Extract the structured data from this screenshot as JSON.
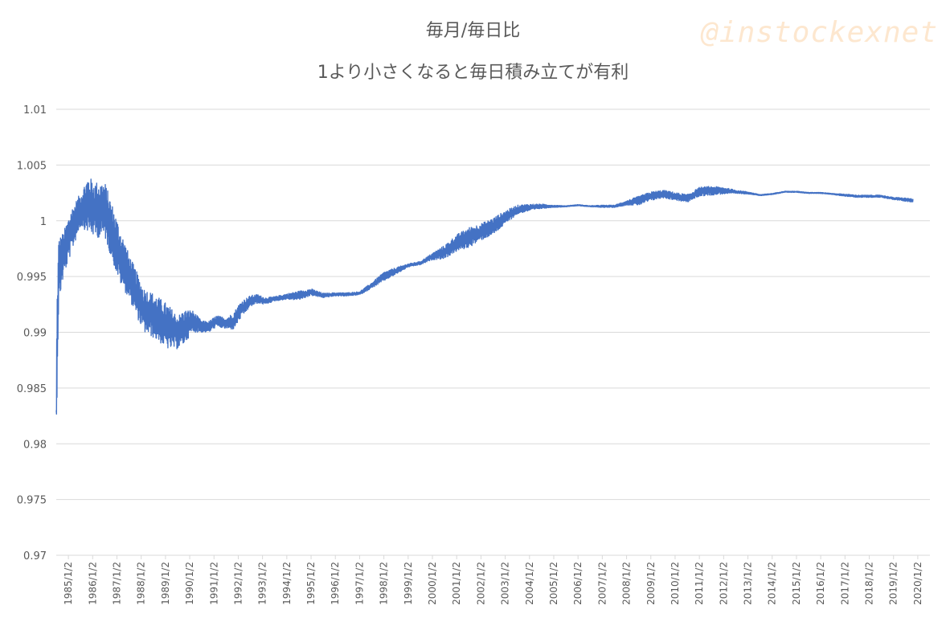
{
  "chart_data": {
    "type": "line",
    "title": "毎月/毎日比",
    "subtitle": "1より小さくなると毎日積み立てが有利",
    "watermark": "@instockexnet",
    "xlabel": "",
    "ylabel": "",
    "ylim": [
      0.97,
      1.01
    ],
    "yticks": [
      "1.01",
      "1.005",
      "1",
      "0.995",
      "0.99",
      "0.985",
      "0.98",
      "0.975",
      "0.97"
    ],
    "categories": [
      "1985/1/2",
      "1986/1/2",
      "1987/1/2",
      "1988/1/2",
      "1989/1/2",
      "1990/1/2",
      "1991/1/2",
      "1992/1/2",
      "1993/1/2",
      "1994/1/2",
      "1995/1/2",
      "1996/1/2",
      "1997/1/2",
      "1998/1/2",
      "1999/1/2",
      "2000/1/2",
      "2001/1/2",
      "2002/1/2",
      "2003/1/2",
      "2004/1/2",
      "2005/1/2",
      "2006/1/2",
      "2007/1/2",
      "2008/1/2",
      "2009/1/2",
      "2010/1/2",
      "2011/1/2",
      "2012/1/2",
      "2013/1/2",
      "2014/1/2",
      "2015/1/2",
      "2016/1/2",
      "2017/1/2",
      "2018/1/2",
      "2019/1/2",
      "2020/1/2"
    ],
    "grid": true,
    "legend": "none",
    "series_color": "#4472c4",
    "grid_color": "#d9d9d9",
    "series": [
      {
        "x": [
          1985.0,
          1985.04,
          1985.1,
          1985.3,
          1985.6,
          1986.0,
          1986.3,
          1986.6,
          1987.0,
          1987.3,
          1987.6,
          1988.0,
          1988.3,
          1988.6,
          1989.0,
          1989.3,
          1989.6,
          1990.0,
          1990.3,
          1990.6,
          1991.0,
          1991.3,
          1991.6,
          1992.0,
          1992.3,
          1992.6,
          1993.0,
          1993.3,
          1993.6,
          1994.0,
          1994.5,
          1995.0,
          1995.5,
          1996.0,
          1996.5,
          1997.0,
          1997.5,
          1998.0,
          1998.5,
          1999.0,
          1999.5,
          2000.0,
          2000.5,
          2001.0,
          2001.5,
          2002.0,
          2002.5,
          2003.0,
          2003.5,
          2004.0,
          2004.5,
          2005.0,
          2005.5,
          2006.0,
          2006.5,
          2007.0,
          2007.5,
          2008.0,
          2008.5,
          2009.0,
          2009.5,
          2010.0,
          2010.5,
          2011.0,
          2011.5,
          2012.0,
          2012.5,
          2013.0,
          2013.5,
          2014.0,
          2014.5,
          2015.0,
          2015.5,
          2016.0,
          2016.5,
          2017.0,
          2017.5,
          2018.0,
          2018.5,
          2019.0,
          2019.5,
          2020.0,
          2020.3
        ],
        "y": [
          0.983,
          0.99,
          0.9955,
          0.997,
          0.999,
          1.001,
          1.0015,
          1.001,
          1.001,
          0.999,
          0.997,
          0.995,
          0.9935,
          0.992,
          0.9915,
          0.991,
          0.9905,
          0.99,
          0.9905,
          0.991,
          0.9905,
          0.9905,
          0.991,
          0.9908,
          0.991,
          0.992,
          0.9928,
          0.993,
          0.9928,
          0.993,
          0.9932,
          0.9933,
          0.9936,
          0.9933,
          0.9934,
          0.9934,
          0.9935,
          0.9942,
          0.995,
          0.9955,
          0.996,
          0.9962,
          0.9968,
          0.9972,
          0.998,
          0.9985,
          0.999,
          0.9995,
          1.0003,
          1.001,
          1.0012,
          1.0013,
          1.0013,
          1.0013,
          1.0014,
          1.0013,
          1.0013,
          1.0013,
          1.0016,
          1.0018,
          1.0022,
          1.0024,
          1.0022,
          1.002,
          1.0026,
          1.0027,
          1.0027,
          1.0026,
          1.0025,
          1.0023,
          1.0024,
          1.0026,
          1.0026,
          1.0025,
          1.0025,
          1.0024,
          1.0023,
          1.0022,
          1.0022,
          1.0022,
          1.002,
          1.0019,
          1.0018
        ],
        "fluctuation_amplitude": [
          0.008,
          0.008,
          0.006,
          0.004,
          0.004,
          0.003,
          0.005,
          0.005,
          0.005,
          0.005,
          0.005,
          0.004,
          0.004,
          0.004,
          0.004,
          0.004,
          0.004,
          0.003,
          0.003,
          0.002,
          0.001,
          0.001,
          0.001,
          0.001,
          0.0015,
          0.0015,
          0.001,
          0.0008,
          0.0006,
          0.0004,
          0.0005,
          0.0008,
          0.0006,
          0.0004,
          0.0003,
          0.0003,
          0.0003,
          0.0005,
          0.0008,
          0.0006,
          0.0003,
          0.0003,
          0.0006,
          0.0012,
          0.0015,
          0.0018,
          0.0015,
          0.0015,
          0.0012,
          0.0008,
          0.0006,
          0.0004,
          0.0002,
          0.0001,
          0.0001,
          0.0001,
          0.0002,
          0.0002,
          0.0004,
          0.0008,
          0.0008,
          0.0007,
          0.0007,
          0.0007,
          0.0008,
          0.0008,
          0.0006,
          0.0003,
          0.0002,
          0.0001,
          0.0001,
          0.0001,
          0.0001,
          0.0001,
          0.0001,
          0.0001,
          0.0002,
          0.0002,
          0.0002,
          0.0002,
          0.0002,
          0.0003,
          0.0003
        ]
      }
    ]
  }
}
